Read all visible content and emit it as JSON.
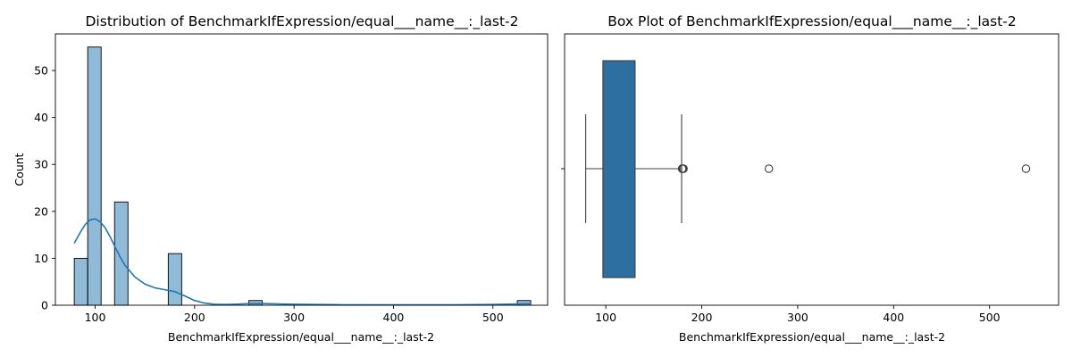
{
  "chart_data": [
    {
      "type": "histogram",
      "title": "Distribution of BenchmarkIfExpression/equal___name__:_last-2",
      "xlabel": "BenchmarkIfExpression/equal___name__:_last-2",
      "ylabel": "Count",
      "xlim": [
        60,
        555
      ],
      "ylim": [
        0,
        57.8
      ],
      "xticks": [
        100,
        200,
        300,
        400,
        500
      ],
      "yticks": [
        0,
        10,
        20,
        30,
        40,
        50
      ],
      "bin_width": 13.5,
      "bins": [
        {
          "x0": 79,
          "x1": 92.5,
          "count": 10
        },
        {
          "x0": 92.5,
          "x1": 106,
          "count": 55
        },
        {
          "x0": 119.5,
          "x1": 133,
          "count": 22
        },
        {
          "x0": 173.5,
          "x1": 187,
          "count": 11
        },
        {
          "x0": 254.5,
          "x1": 268,
          "count": 1
        },
        {
          "x0": 524.5,
          "x1": 538,
          "count": 1
        }
      ],
      "kde": {
        "x": [
          79,
          85,
          90,
          95,
          100,
          105,
          110,
          115,
          120,
          125,
          130,
          140,
          150,
          160,
          170,
          180,
          190,
          200,
          210,
          220,
          230,
          240,
          250,
          260,
          270,
          280,
          300,
          350,
          400,
          450,
          500,
          520,
          538
        ],
        "y": [
          13.2,
          15.5,
          17.2,
          18.2,
          18.4,
          17.8,
          16.5,
          14.6,
          12.4,
          10.3,
          8.5,
          6.0,
          4.5,
          3.7,
          3.3,
          2.9,
          2.0,
          1.0,
          0.45,
          0.2,
          0.15,
          0.2,
          0.3,
          0.35,
          0.35,
          0.3,
          0.2,
          0.1,
          0.07,
          0.08,
          0.15,
          0.25,
          0.32
        ]
      },
      "color": "#1f77b4",
      "bar_fill_opacity": 0.5
    },
    {
      "type": "box",
      "title": "Box Plot of BenchmarkIfExpression/equal___name__:_last-2",
      "xlabel": "BenchmarkIfExpression/equal___name__:_last-2",
      "xlim": [
        57,
        572
      ],
      "xticks": [
        100,
        200,
        300,
        400,
        500
      ],
      "stats": {
        "whisker_low": 79,
        "q1": 97,
        "median": 97,
        "q3": 130.5,
        "whisker_high": 179
      },
      "outliers": [
        179.5,
        180,
        180.5,
        181,
        270,
        538
      ],
      "color": "#2e6fa2"
    }
  ]
}
